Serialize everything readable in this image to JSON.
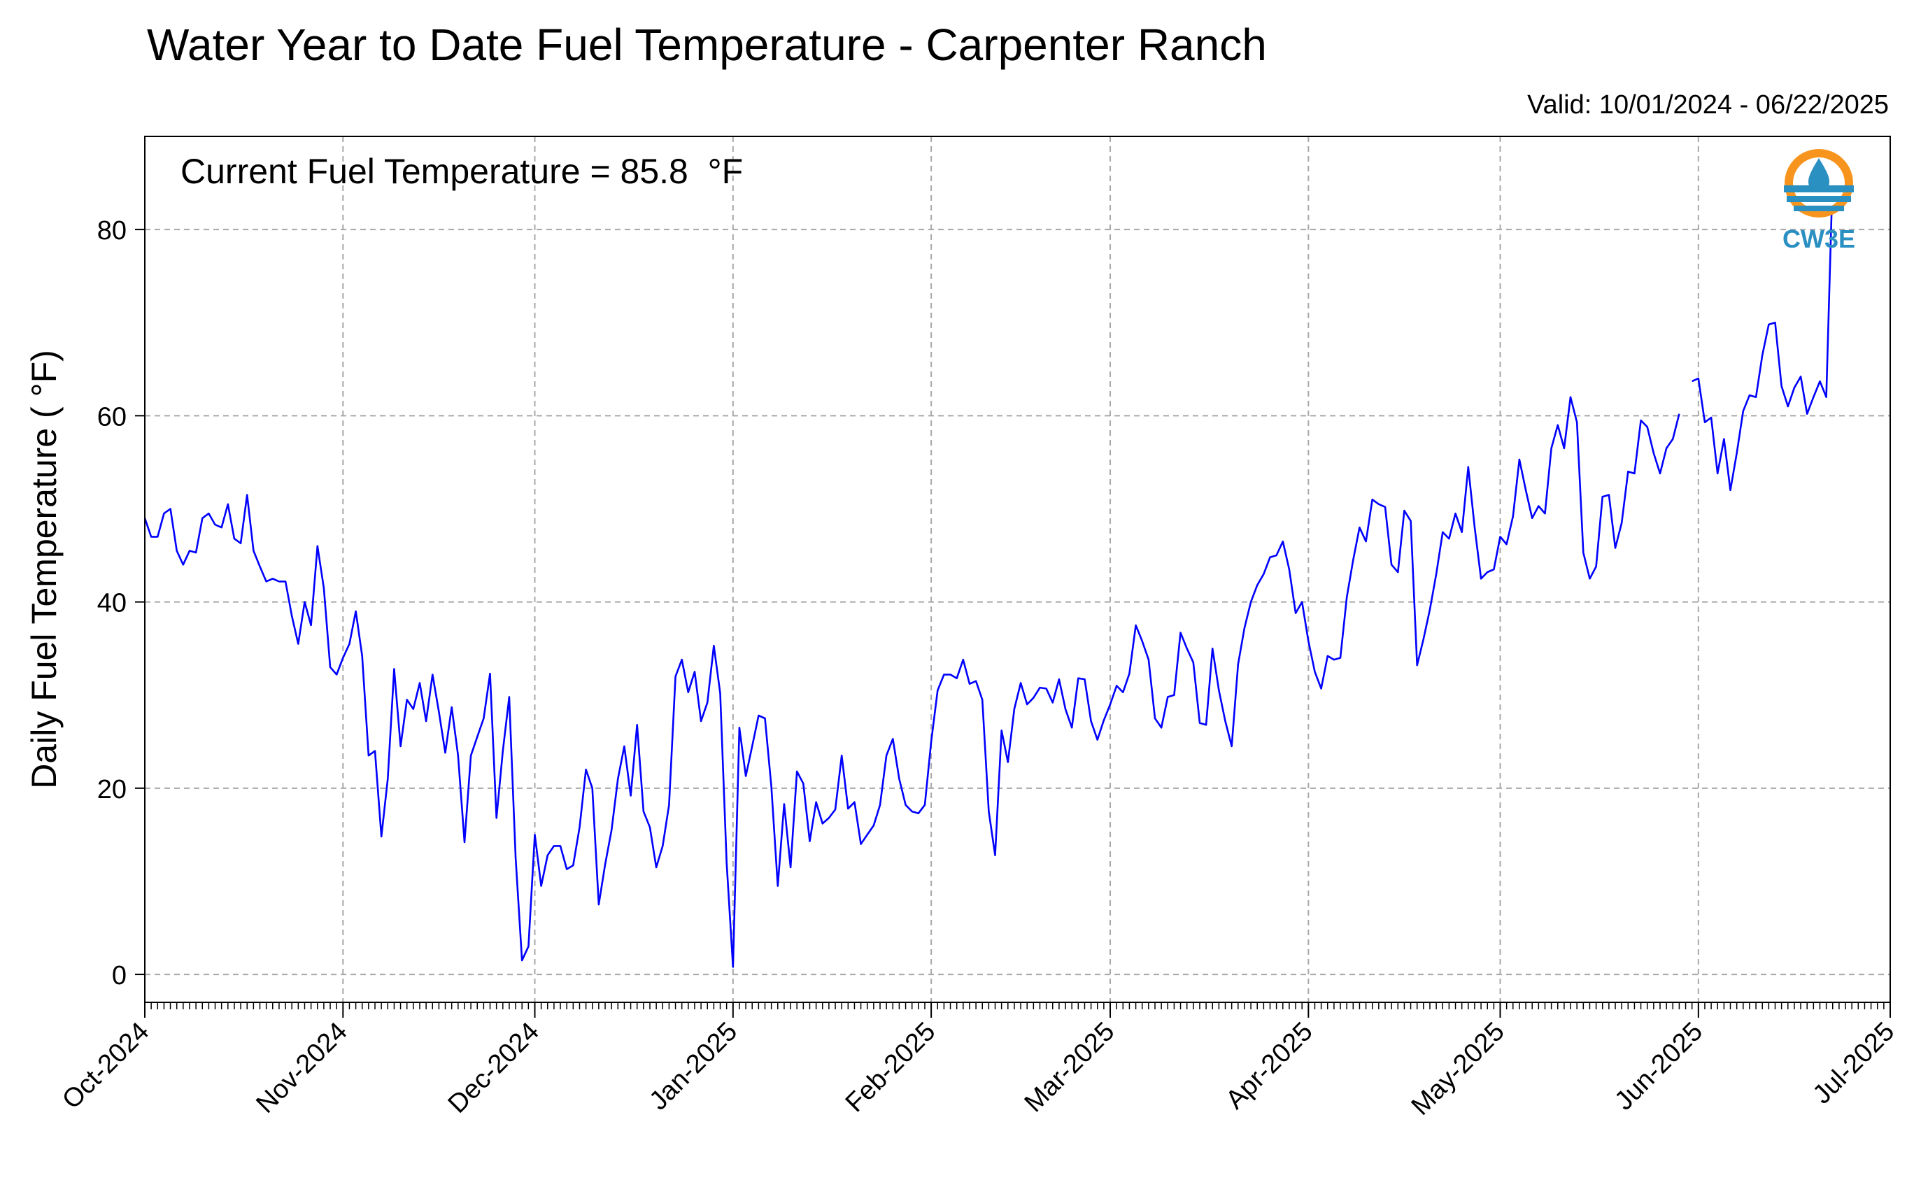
{
  "chart_data": {
    "type": "line",
    "title": "Water Year to Date Fuel Temperature - Carpenter Ranch",
    "subtitle": "Valid: 10/01/2024 - 06/22/2025",
    "annotation": "Current Fuel Temperature = 85.8  °F",
    "xlabel": "",
    "ylabel": "Daily Fuel Temperature ( °F)",
    "xlim": [
      "2024-10-01",
      "2025-07-01"
    ],
    "ylim": [
      -3,
      90
    ],
    "yticks": [
      0,
      20,
      40,
      60,
      80
    ],
    "xticks": [
      {
        "date": "2024-10-01",
        "label": "Oct-2024"
      },
      {
        "date": "2024-11-01",
        "label": "Nov-2024"
      },
      {
        "date": "2024-12-01",
        "label": "Dec-2024"
      },
      {
        "date": "2025-01-01",
        "label": "Jan-2025"
      },
      {
        "date": "2025-02-01",
        "label": "Feb-2025"
      },
      {
        "date": "2025-03-01",
        "label": "Mar-2025"
      },
      {
        "date": "2025-04-01",
        "label": "Apr-2025"
      },
      {
        "date": "2025-05-01",
        "label": "May-2025"
      },
      {
        "date": "2025-06-01",
        "label": "Jun-2025"
      },
      {
        "date": "2025-07-01",
        "label": "Jul-2025"
      }
    ],
    "grid": true,
    "line_color": "#0000ff",
    "series": [
      {
        "start_date": "2024-10-01",
        "values": [
          49,
          47,
          47,
          49.5,
          50,
          45.5,
          44,
          45.5,
          45.3,
          49,
          49.5,
          48.3,
          48,
          50.5,
          46.8,
          46.3,
          51.5,
          45.5,
          43.8,
          42.2,
          42.5,
          42.2,
          42.2,
          38.5,
          35.5,
          40,
          37.5,
          46,
          41.5,
          33,
          32.2,
          34,
          35.5,
          39,
          34.2,
          23.5,
          24,
          14.8,
          21,
          32.8,
          24.5,
          29.5,
          28.5,
          31.3,
          27.2,
          32.2,
          28.2,
          23.8,
          28.7,
          23.5,
          14.2,
          23.5,
          25.5,
          27.5,
          32.3,
          16.8,
          24,
          29.8,
          12.5,
          1.5,
          3,
          15,
          9.5,
          12.8,
          13.8,
          13.8,
          11.3,
          11.7,
          15.8,
          22,
          20,
          7.5,
          11.8,
          15.5,
          21,
          24.5,
          19.2,
          26.8,
          17.5,
          15.8,
          11.5,
          13.8,
          18.2,
          32,
          33.8,
          30.3,
          32.5,
          27.2,
          29.2,
          35.3,
          30.2,
          12,
          0.8,
          26.5,
          21.3,
          24.5,
          27.8,
          27.5,
          20.2,
          9.5,
          18.3,
          11.5,
          21.8,
          20.5,
          14.3,
          18.5,
          16.2,
          16.8,
          17.7,
          23.5,
          17.8,
          18.5,
          14,
          15,
          16,
          18.2,
          23.5,
          25.3,
          21,
          18.2,
          17.5,
          17.3,
          18.2,
          25,
          30.5,
          32.2,
          32.2,
          31.8,
          33.8,
          31.2,
          31.5,
          29.5,
          17.5,
          12.8,
          26.2,
          22.8,
          28.5,
          31.3,
          29,
          29.7,
          30.8,
          30.7,
          29.2,
          31.7,
          28.5,
          26.5,
          31.8,
          31.7,
          27.2,
          25.2,
          27.3,
          29,
          31,
          30.3,
          32.3,
          37.5,
          35.8,
          33.8,
          27.5,
          26.5,
          29.8,
          30,
          36.7,
          35,
          33.5,
          27,
          26.8,
          35,
          30.5,
          27.2,
          24.5,
          33.3,
          37.2,
          40,
          41.8,
          43,
          44.8,
          45,
          46.5,
          43.5,
          38.8,
          40,
          35.8,
          32.5,
          30.7,
          34.2,
          33.8,
          34,
          40.5,
          44.5,
          48,
          46.5,
          51,
          50.5,
          50.2,
          44,
          43.2,
          49.8,
          48.7,
          33.2,
          36,
          39.2,
          43,
          47.5,
          46.8,
          49.5,
          47.5,
          54.5,
          48,
          42.5,
          43.2,
          43.5,
          47,
          46.2,
          49.2,
          55.3,
          52,
          49,
          50.3,
          49.5,
          56.5,
          59,
          56.5,
          62,
          59.3,
          45.3,
          42.5,
          43.8,
          51.3,
          51.5,
          45.8,
          48.5,
          54,
          53.8,
          59.5,
          58.8,
          56,
          53.8,
          56.5,
          57.5,
          60.2,
          null,
          63.7,
          64,
          59.3,
          59.8,
          53.8,
          57.5,
          52,
          56,
          60.5,
          62.2,
          62,
          66.5,
          69.8,
          70,
          63.2,
          61,
          63,
          64.2,
          60.2,
          62,
          63.7,
          62,
          85.8
        ]
      }
    ]
  },
  "logo": {
    "text": "CW3E",
    "ring_color": "#f7941d",
    "brand_color": "#2a8fc1"
  }
}
